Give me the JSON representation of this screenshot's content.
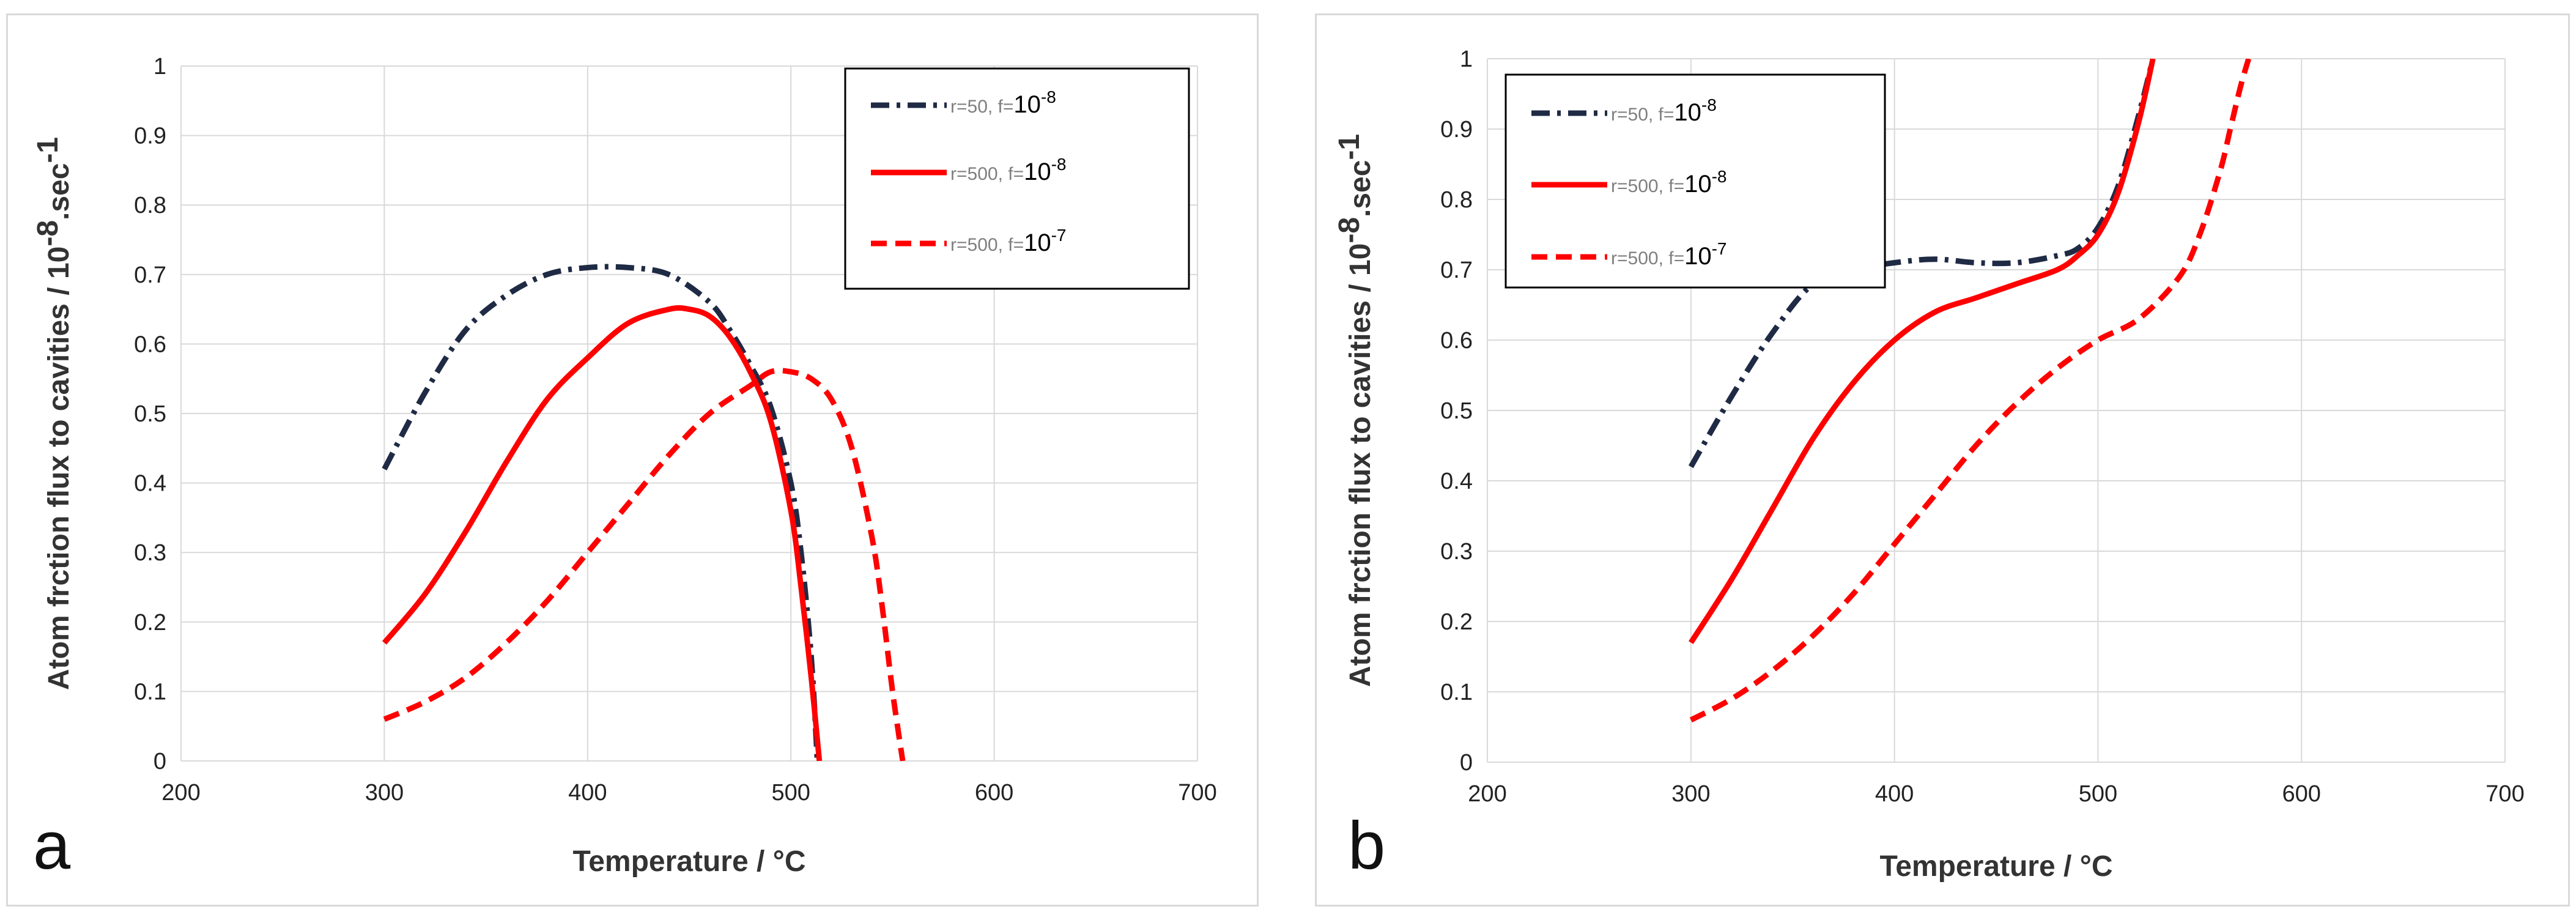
{
  "chart_data": [
    {
      "panel": "a",
      "type": "line",
      "xlabel": "Temperature / °C",
      "ylabel": "Atom frction flux to cavities / 10",
      "ylabel_exp": "-8",
      "ylabel_suffix": ".sec",
      "ylabel_suffix_exp": "-1",
      "xlim": [
        200,
        700
      ],
      "ylim": [
        0,
        1
      ],
      "xticks": [
        "200",
        "300",
        "400",
        "500",
        "600",
        "700"
      ],
      "yticks": [
        "0",
        "0.1",
        "0.2",
        "0.3",
        "0.4",
        "0.5",
        "0.6",
        "0.7",
        "0.8",
        "0.9",
        "1"
      ],
      "legend_position": "top-right",
      "series": [
        {
          "name": "r=50, f=10-8",
          "label_small": "r=50, f=",
          "label_big": "10",
          "label_exp": "-8",
          "color": "#1f2a44",
          "dash": "dashdot",
          "x": [
            300,
            320,
            340,
            360,
            380,
            400,
            420,
            440,
            460,
            470,
            480,
            490,
            500,
            505,
            510,
            513
          ],
          "y": [
            0.42,
            0.53,
            0.62,
            0.67,
            0.7,
            0.71,
            0.71,
            0.7,
            0.66,
            0.62,
            0.57,
            0.51,
            0.4,
            0.3,
            0.15,
            0.0
          ]
        },
        {
          "name": "r=500, f=10-8",
          "label_small": "r=500, f=",
          "label_big": "10",
          "label_exp": "-8",
          "color": "#ff0000",
          "dash": "solid",
          "x": [
            300,
            320,
            340,
            360,
            380,
            400,
            420,
            440,
            450,
            460,
            470,
            480,
            490,
            500,
            505,
            510,
            514
          ],
          "y": [
            0.17,
            0.24,
            0.33,
            0.43,
            0.52,
            0.58,
            0.63,
            0.65,
            0.65,
            0.64,
            0.61,
            0.56,
            0.49,
            0.36,
            0.25,
            0.12,
            0.0
          ]
        },
        {
          "name": "r=500, f=10-7",
          "label_small": "r=500, f=",
          "label_big": "10",
          "label_exp": "-7",
          "color": "#ff0000",
          "dash": "dashed",
          "x": [
            300,
            320,
            340,
            360,
            380,
            400,
            420,
            440,
            460,
            480,
            490,
            500,
            510,
            520,
            530,
            540,
            545,
            550,
            555
          ],
          "y": [
            0.06,
            0.085,
            0.12,
            0.17,
            0.23,
            0.3,
            0.37,
            0.44,
            0.5,
            0.54,
            0.56,
            0.56,
            0.55,
            0.52,
            0.45,
            0.32,
            0.22,
            0.1,
            0.0
          ]
        }
      ]
    },
    {
      "panel": "b",
      "type": "line",
      "xlabel": "Temperature / °C",
      "ylabel": "Atom frction flux to cavities / 10",
      "ylabel_exp": "-8",
      "ylabel_suffix": ".sec",
      "ylabel_suffix_exp": "-1",
      "xlim": [
        200,
        700
      ],
      "ylim": [
        0,
        1
      ],
      "xticks": [
        "200",
        "300",
        "400",
        "500",
        "600",
        "700"
      ],
      "yticks": [
        "0",
        "0.1",
        "0.2",
        "0.3",
        "0.4",
        "0.5",
        "0.6",
        "0.7",
        "0.8",
        "0.9",
        "1"
      ],
      "legend_position": "top-left",
      "series": [
        {
          "name": "r=50, f=10-8",
          "label_small": "r=50, f=",
          "label_big": "10",
          "label_exp": "-8",
          "color": "#1f2a44",
          "dash": "dashdot",
          "x": [
            300,
            320,
            340,
            360,
            380,
            400,
            420,
            440,
            460,
            480,
            490,
            500,
            510,
            520,
            527
          ],
          "y": [
            0.42,
            0.52,
            0.61,
            0.68,
            0.7,
            0.71,
            0.715,
            0.71,
            0.71,
            0.72,
            0.73,
            0.76,
            0.82,
            0.92,
            1.0
          ]
        },
        {
          "name": "r=500, f=10-8",
          "label_small": "r=500, f=",
          "label_big": "10",
          "label_exp": "-8",
          "color": "#ff0000",
          "dash": "solid",
          "x": [
            300,
            320,
            340,
            360,
            380,
            400,
            420,
            440,
            460,
            480,
            490,
            500,
            510,
            520,
            527
          ],
          "y": [
            0.17,
            0.26,
            0.36,
            0.46,
            0.54,
            0.6,
            0.64,
            0.66,
            0.68,
            0.7,
            0.72,
            0.75,
            0.81,
            0.91,
            1.0
          ]
        },
        {
          "name": "r=500, f=10-7",
          "label_small": "r=500, f=",
          "label_big": "10",
          "label_exp": "-7",
          "color": "#ff0000",
          "dash": "dashed",
          "x": [
            300,
            320,
            340,
            360,
            380,
            400,
            420,
            440,
            460,
            480,
            500,
            520,
            540,
            550,
            560,
            565,
            570,
            574
          ],
          "y": [
            0.06,
            0.09,
            0.13,
            0.18,
            0.24,
            0.31,
            0.38,
            0.45,
            0.51,
            0.56,
            0.6,
            0.63,
            0.69,
            0.75,
            0.84,
            0.9,
            0.96,
            1.0
          ]
        }
      ]
    }
  ],
  "panel_labels": [
    "a",
    "b"
  ]
}
